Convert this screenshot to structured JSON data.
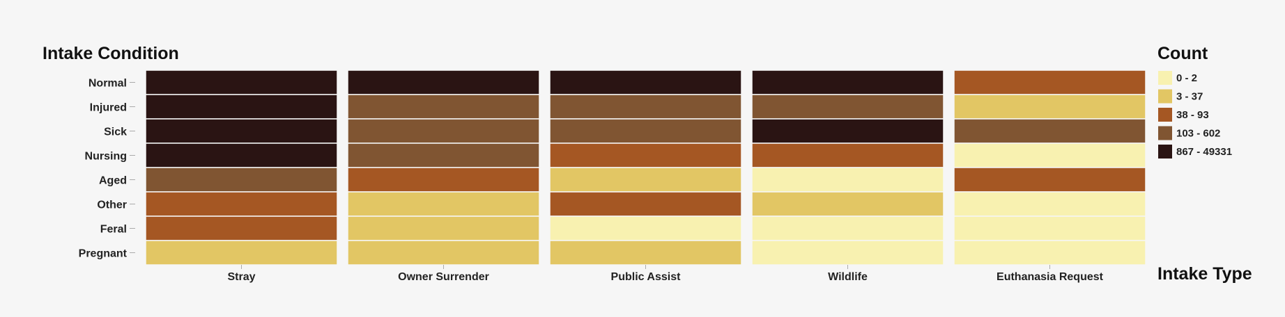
{
  "chart_data": {
    "type": "heatmap",
    "y_title": "Intake Condition",
    "x_title": "Intake Type",
    "legend_title": "Count",
    "rows": [
      "Normal",
      "Injured",
      "Sick",
      "Nursing",
      "Aged",
      "Other",
      "Feral",
      "Pregnant"
    ],
    "columns": [
      "Stray",
      "Owner Surrender",
      "Public Assist",
      "Wildlife",
      "Euthanasia Request"
    ],
    "bins": [
      {
        "label": "0 - 2",
        "color": "#f8f1b0"
      },
      {
        "label": "3 - 37",
        "color": "#e2c664"
      },
      {
        "label": "38 - 93",
        "color": "#a55723"
      },
      {
        "label": "103 - 602",
        "color": "#805532"
      },
      {
        "label": "867 - 49331",
        "color": "#2a1413"
      }
    ],
    "cell_bins": [
      [
        4,
        4,
        4,
        4,
        2
      ],
      [
        4,
        3,
        3,
        3,
        1
      ],
      [
        4,
        3,
        3,
        4,
        3
      ],
      [
        4,
        3,
        2,
        2,
        0
      ],
      [
        3,
        2,
        1,
        0,
        2
      ],
      [
        2,
        1,
        2,
        1,
        0
      ],
      [
        2,
        1,
        0,
        0,
        0
      ],
      [
        1,
        1,
        1,
        0,
        0
      ]
    ]
  }
}
